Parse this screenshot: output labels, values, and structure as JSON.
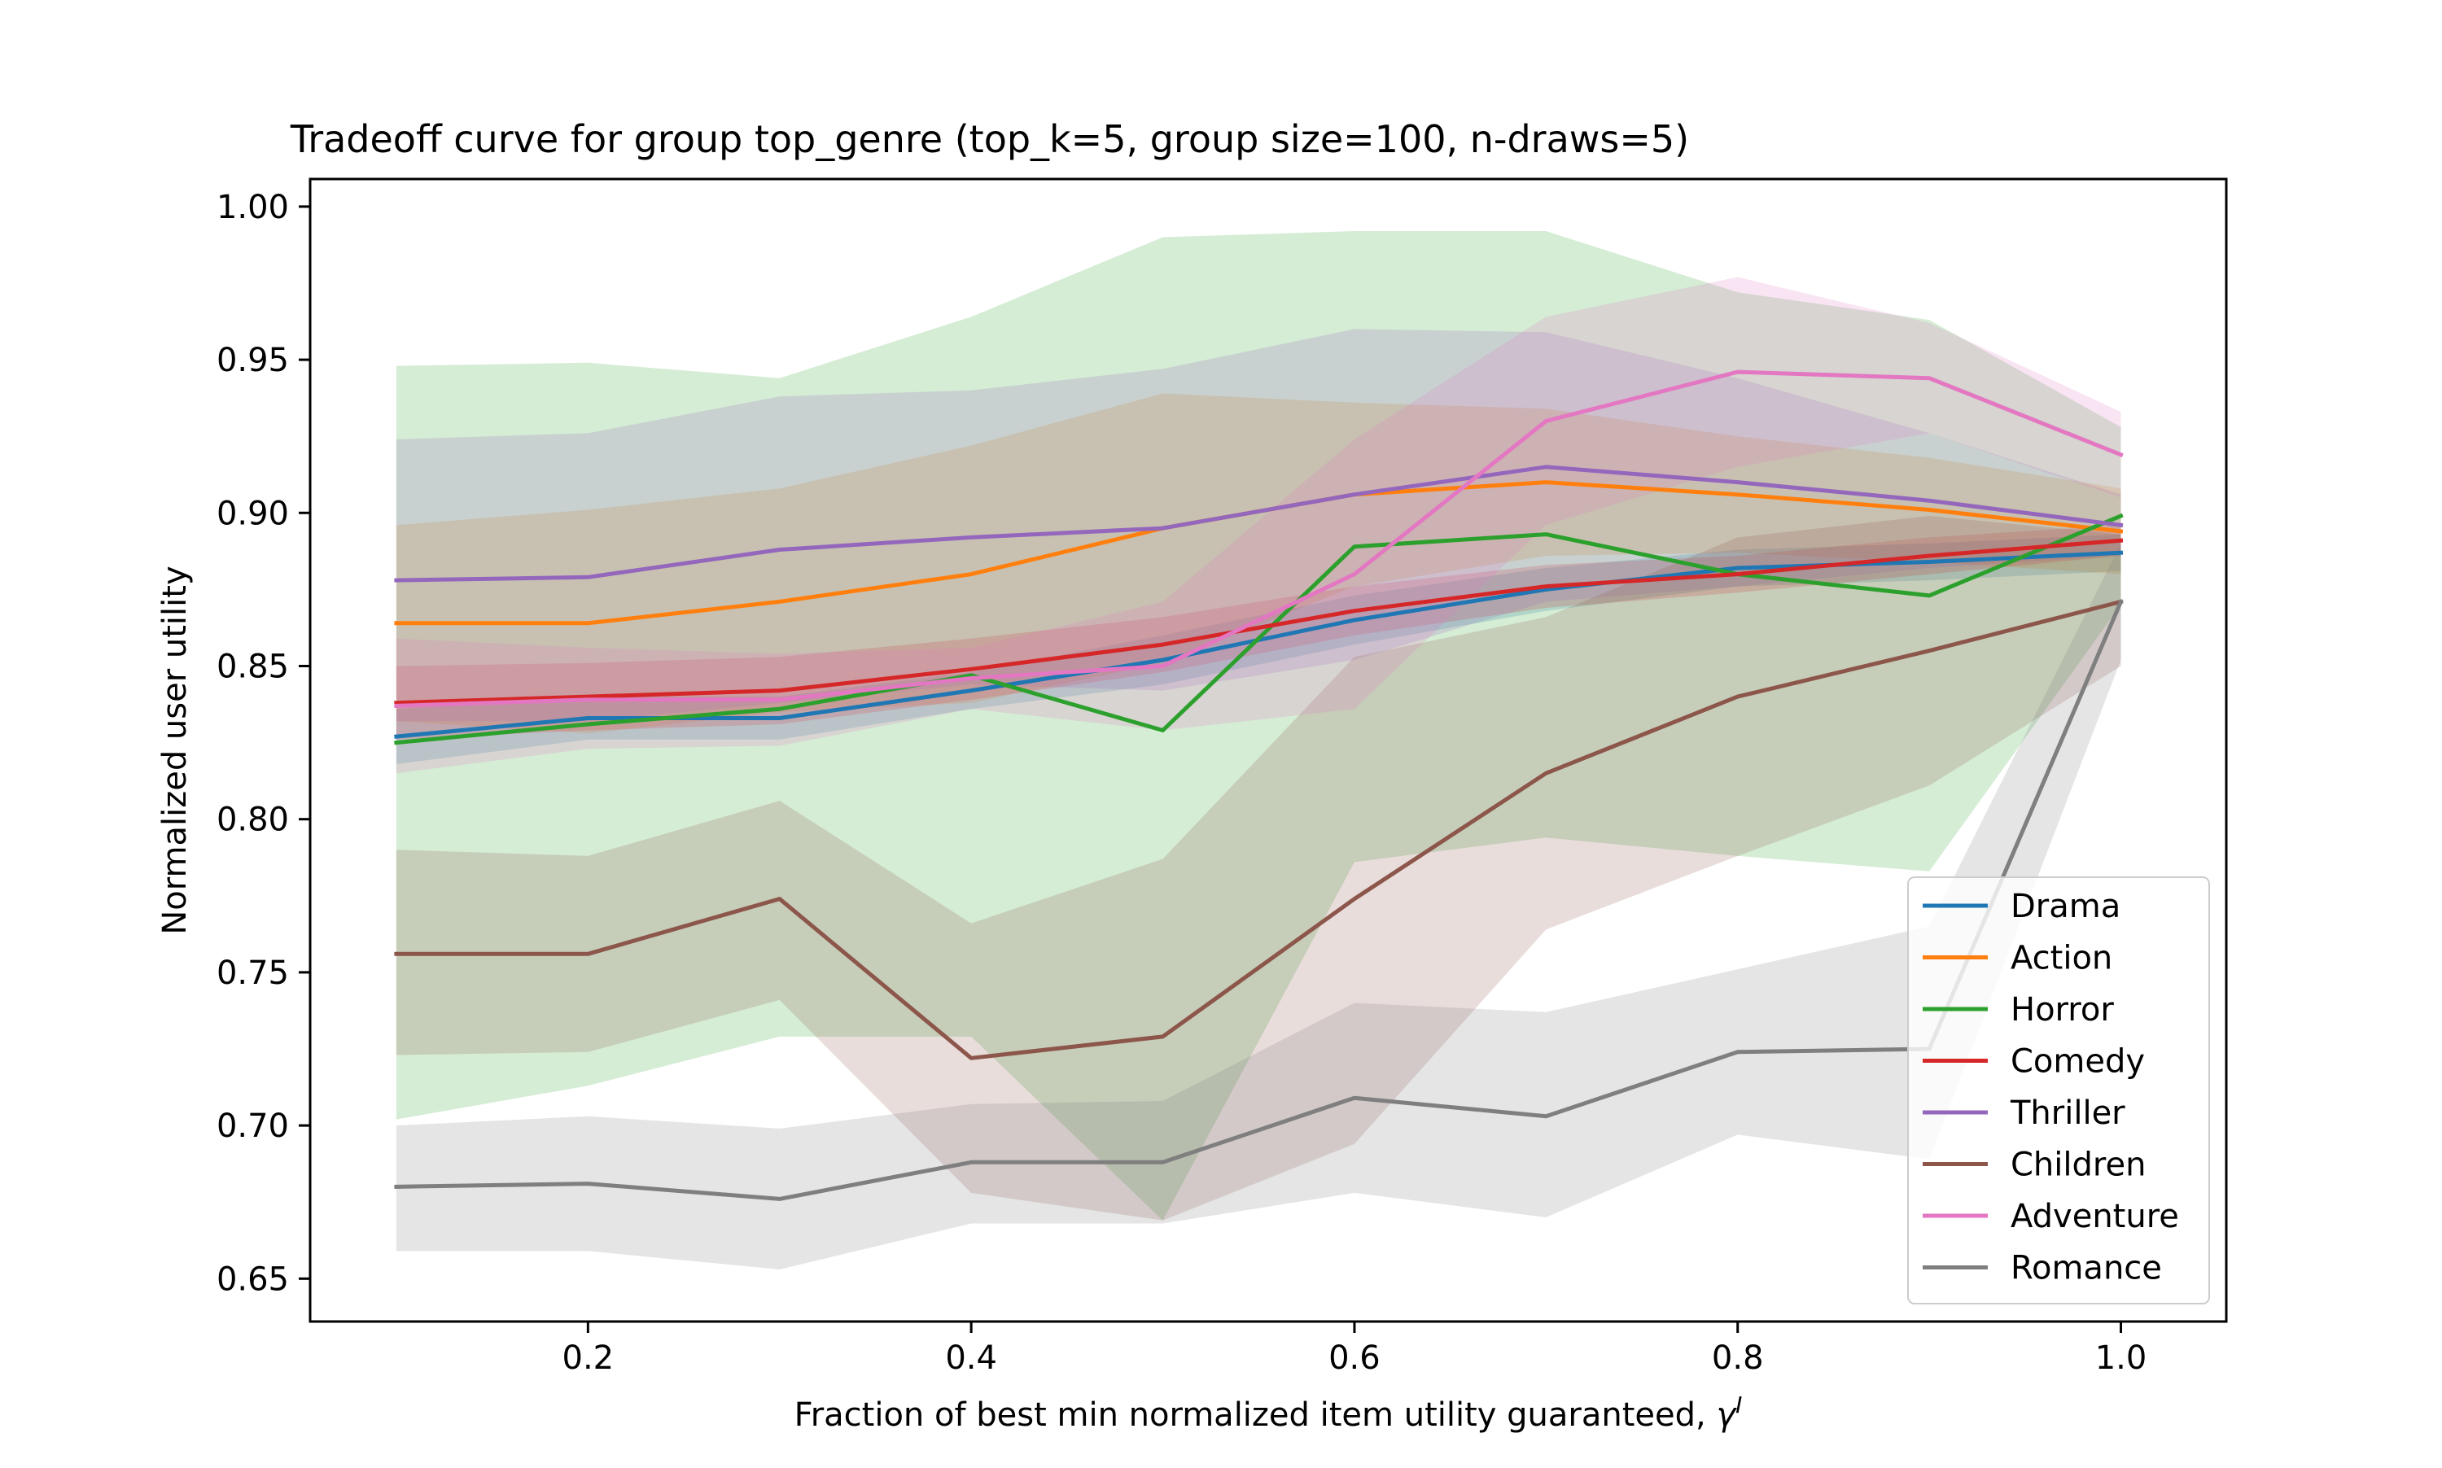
{
  "chart_data": {
    "type": "line",
    "title": "Tradeoff curve for group top_genre (top_k=5, group size=100, n-draws=5)",
    "xlabel": "Fraction of best min normalized item utility guaranteed, ",
    "xlabel_symbol": "γ",
    "xlabel_superscript": "I",
    "ylabel": "Normalized user utility",
    "xlim": [
      0.055,
      1.055
    ],
    "ylim": [
      0.636,
      1.009
    ],
    "xticks": [
      "0.2",
      "0.4",
      "0.6",
      "0.8",
      "1.0"
    ],
    "yticks": [
      "0.65",
      "0.70",
      "0.75",
      "0.80",
      "0.85",
      "0.90",
      "0.95",
      "1.00"
    ],
    "grid": false,
    "legend_position": "lower-right",
    "x": [
      0.1,
      0.2,
      0.3,
      0.4,
      0.5,
      0.6,
      0.7,
      0.8,
      0.9,
      1.0
    ],
    "series": [
      {
        "name": "Drama",
        "color": "#1f77b4",
        "values": [
          0.827,
          0.833,
          0.833,
          0.842,
          0.852,
          0.865,
          0.875,
          0.882,
          0.884,
          0.887
        ],
        "lower": [
          0.818,
          0.826,
          0.826,
          0.836,
          0.844,
          0.857,
          0.868,
          0.876,
          0.878,
          0.881
        ],
        "upper": [
          0.836,
          0.84,
          0.84,
          0.848,
          0.86,
          0.873,
          0.882,
          0.888,
          0.89,
          0.893
        ]
      },
      {
        "name": "Action",
        "color": "#ff7f0e",
        "values": [
          0.864,
          0.864,
          0.871,
          0.88,
          0.895,
          0.906,
          0.91,
          0.906,
          0.901,
          0.894
        ],
        "lower": [
          0.832,
          0.828,
          0.835,
          0.838,
          0.851,
          0.876,
          0.886,
          0.887,
          0.884,
          0.88
        ],
        "upper": [
          0.896,
          0.901,
          0.908,
          0.922,
          0.939,
          0.936,
          0.934,
          0.925,
          0.918,
          0.908
        ]
      },
      {
        "name": "Horror",
        "color": "#2ca02c",
        "values": [
          0.825,
          0.831,
          0.836,
          0.847,
          0.829,
          0.889,
          0.893,
          0.88,
          0.873,
          0.899
        ],
        "lower": [
          0.702,
          0.713,
          0.729,
          0.729,
          0.669,
          0.786,
          0.794,
          0.788,
          0.783,
          0.87
        ],
        "upper": [
          0.948,
          0.949,
          0.944,
          0.964,
          0.99,
          0.992,
          0.992,
          0.972,
          0.963,
          0.928
        ]
      },
      {
        "name": "Comedy",
        "color": "#d62728",
        "values": [
          0.838,
          0.84,
          0.842,
          0.849,
          0.857,
          0.868,
          0.876,
          0.88,
          0.886,
          0.891
        ],
        "lower": [
          0.826,
          0.829,
          0.831,
          0.839,
          0.848,
          0.86,
          0.869,
          0.874,
          0.88,
          0.886
        ],
        "upper": [
          0.85,
          0.851,
          0.853,
          0.859,
          0.866,
          0.876,
          0.883,
          0.886,
          0.892,
          0.896
        ]
      },
      {
        "name": "Thriller",
        "color": "#9467bd",
        "values": [
          0.878,
          0.879,
          0.888,
          0.892,
          0.895,
          0.906,
          0.915,
          0.91,
          0.904,
          0.896
        ],
        "lower": [
          0.832,
          0.832,
          0.838,
          0.844,
          0.842,
          0.852,
          0.871,
          0.876,
          0.882,
          0.886
        ],
        "upper": [
          0.924,
          0.926,
          0.938,
          0.94,
          0.947,
          0.96,
          0.959,
          0.944,
          0.926,
          0.906
        ]
      },
      {
        "name": "Children",
        "color": "#8c564b",
        "values": [
          0.756,
          0.756,
          0.774,
          0.722,
          0.729,
          0.774,
          0.815,
          0.84,
          0.855,
          0.871
        ],
        "lower": [
          0.723,
          0.724,
          0.741,
          0.678,
          0.669,
          0.694,
          0.764,
          0.788,
          0.811,
          0.85
        ],
        "upper": [
          0.79,
          0.788,
          0.806,
          0.766,
          0.787,
          0.853,
          0.866,
          0.892,
          0.899,
          0.893
        ]
      },
      {
        "name": "Adventure",
        "color": "#e377c2",
        "values": [
          0.837,
          0.839,
          0.839,
          0.846,
          0.85,
          0.88,
          0.93,
          0.946,
          0.944,
          0.919
        ],
        "lower": [
          0.815,
          0.823,
          0.824,
          0.836,
          0.829,
          0.836,
          0.896,
          0.915,
          0.926,
          0.905
        ],
        "upper": [
          0.859,
          0.856,
          0.854,
          0.856,
          0.871,
          0.924,
          0.964,
          0.977,
          0.962,
          0.933
        ]
      },
      {
        "name": "Romance",
        "color": "#7f7f7f",
        "values": [
          0.68,
          0.681,
          0.676,
          0.688,
          0.688,
          0.709,
          0.703,
          0.724,
          0.725,
          0.871
        ],
        "lower": [
          0.659,
          0.659,
          0.653,
          0.668,
          0.668,
          0.678,
          0.67,
          0.697,
          0.689,
          0.852
        ],
        "upper": [
          0.7,
          0.703,
          0.699,
          0.707,
          0.708,
          0.74,
          0.737,
          0.751,
          0.765,
          0.89
        ]
      }
    ]
  }
}
